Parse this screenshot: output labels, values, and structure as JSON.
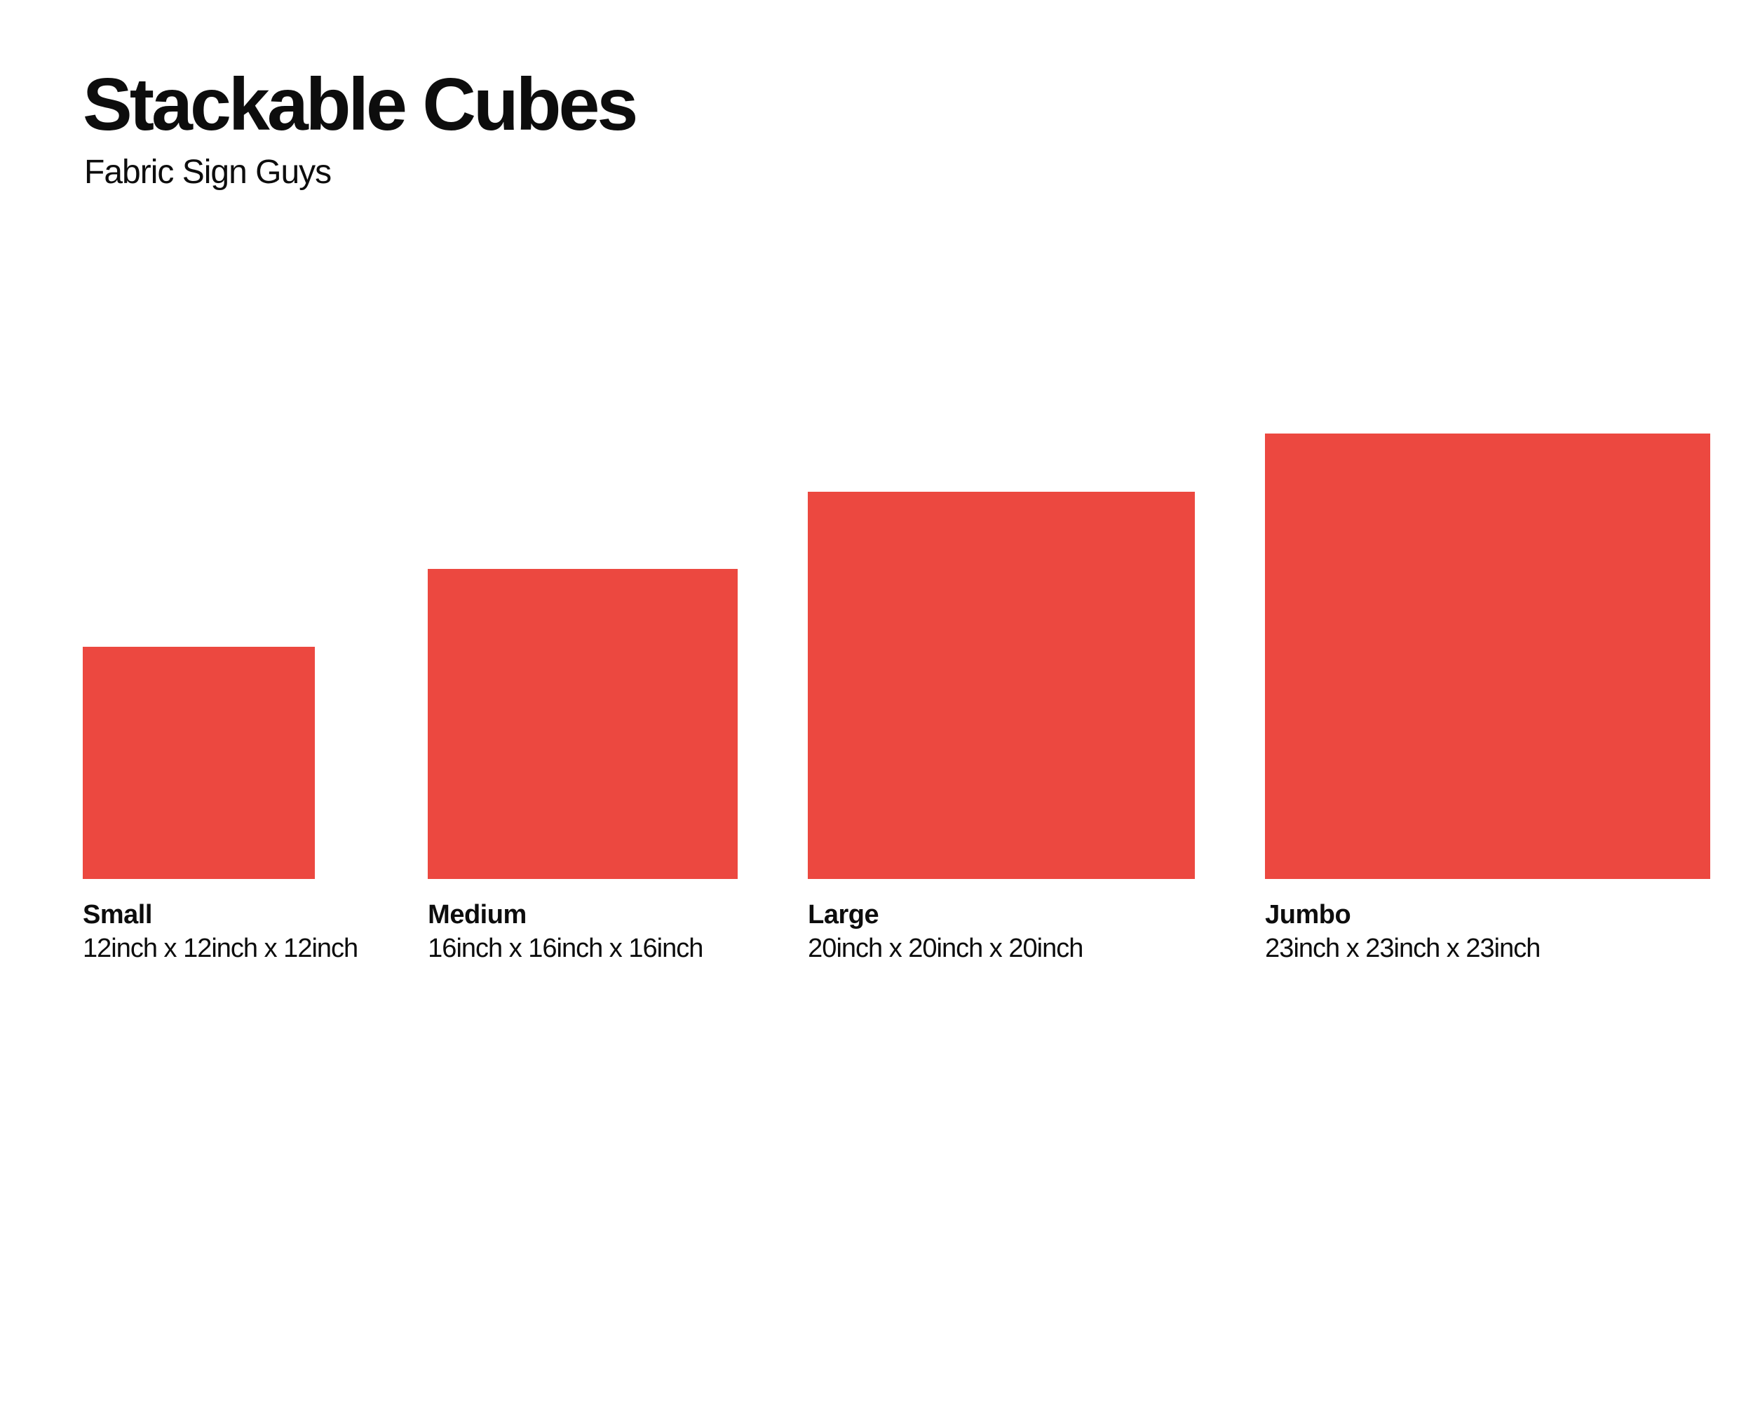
{
  "header": {
    "title": "Stackable Cubes",
    "subtitle": "Fabric Sign Guys"
  },
  "cubes": [
    {
      "name": "Small",
      "dimensions": "12inch x 12inch x 12inch",
      "size_inches": 12
    },
    {
      "name": "Medium",
      "dimensions": "16inch x 16inch x 16inch",
      "size_inches": 16
    },
    {
      "name": "Large",
      "dimensions": "20inch x 20inch x 20inch",
      "size_inches": 20
    },
    {
      "name": "Jumbo",
      "dimensions": "23inch x 23inch x 23inch",
      "size_inches": 23
    }
  ],
  "colors": {
    "cube_fill": "#EC4840",
    "background": "#FFFFFF",
    "text": "#0D0D0D"
  },
  "chart_data": {
    "type": "bar",
    "title": "Stackable Cubes",
    "subtitle": "Fabric Sign Guys",
    "categories": [
      "Small",
      "Medium",
      "Large",
      "Jumbo"
    ],
    "values": [
      12,
      16,
      20,
      23
    ],
    "unit": "inch",
    "labels": [
      "12inch x 12inch x 12inch",
      "16inch x 16inch x 16inch",
      "20inch x 20inch x 20inch",
      "23inch x 23inch x 23inch"
    ],
    "legend": false,
    "grid": false,
    "notes": "Size-comparison infographic: solid red squares scaled proportionally to cube edge length, bottoms aligned on a common baseline"
  }
}
